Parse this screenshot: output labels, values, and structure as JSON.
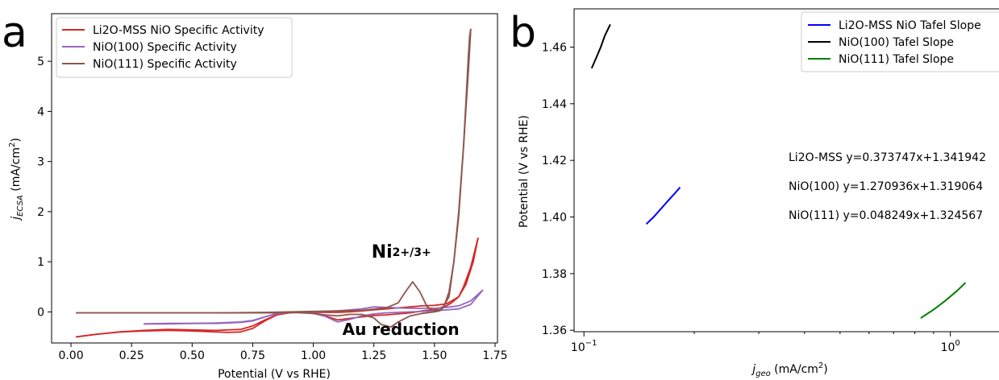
{
  "chart_data": [
    {
      "panel_label": "a",
      "type": "line",
      "title": "",
      "xlabel": "Potential (V vs RHE)",
      "ylabel_main": "j",
      "ylabel_sub": "ECSA",
      "ylabel_unit": " (mA/cm",
      "ylabel_sup": "2",
      "ylabel_close": ")",
      "xlim": [
        -0.08,
        1.76
      ],
      "ylim": [
        -0.62,
        5.95
      ],
      "xticks": [
        0.0,
        0.25,
        0.5,
        0.75,
        1.0,
        1.25,
        1.5,
        1.75
      ],
      "xtick_labels": [
        "0.00",
        "0.25",
        "0.50",
        "0.75",
        "1.00",
        "1.25",
        "1.50",
        "1.75"
      ],
      "yticks": [
        0,
        1,
        2,
        3,
        4,
        5
      ],
      "ytick_labels": [
        "0",
        "1",
        "2",
        "3",
        "4",
        "5"
      ],
      "grid": false,
      "legend_position": "top-left",
      "annotations": [
        {
          "main": "Ni",
          "sup": "2+/3+",
          "x": 1.24,
          "y": 1.08
        },
        {
          "main": "Au reduction",
          "x": 1.12,
          "y": -0.46
        }
      ],
      "series": [
        {
          "name": "Li2O-MSS NiO Specific Activity",
          "color": "#d62728",
          "scans": [
            {
              "x": [
                0.02,
                0.1,
                0.2,
                0.3,
                0.4,
                0.5,
                0.6,
                0.65,
                0.7,
                0.75,
                0.8,
                0.85,
                0.9,
                0.95,
                1.0,
                1.05,
                1.1,
                1.15,
                1.2,
                1.25,
                1.3,
                1.35,
                1.4,
                1.45,
                1.5,
                1.55,
                1.6,
                1.63,
                1.66,
                1.68
              ],
              "y": [
                -0.5,
                -0.45,
                -0.4,
                -0.38,
                -0.37,
                -0.38,
                -0.4,
                -0.41,
                -0.4,
                -0.33,
                -0.18,
                -0.06,
                -0.02,
                -0.01,
                -0.01,
                -0.01,
                -0.01,
                0.0,
                0.02,
                0.04,
                0.06,
                0.08,
                0.1,
                0.12,
                0.13,
                0.16,
                0.3,
                0.55,
                1.0,
                1.48
              ]
            },
            {
              "x": [
                1.68,
                1.65,
                1.62,
                1.6,
                1.57,
                1.55,
                1.5,
                1.45,
                1.4,
                1.35,
                1.3,
                1.25,
                1.2,
                1.15,
                1.1,
                1.05,
                1.0,
                0.95,
                0.9,
                0.85,
                0.8,
                0.75,
                0.7,
                0.6,
                0.5,
                0.4,
                0.3,
                0.2,
                0.1,
                0.02
              ],
              "y": [
                1.48,
                0.9,
                0.5,
                0.3,
                0.18,
                0.12,
                0.05,
                0.02,
                -0.02,
                -0.04,
                -0.06,
                -0.07,
                -0.1,
                -0.13,
                -0.16,
                -0.08,
                -0.03,
                -0.01,
                -0.01,
                -0.06,
                -0.16,
                -0.28,
                -0.35,
                -0.37,
                -0.36,
                -0.35,
                -0.37,
                -0.4,
                -0.45,
                -0.5
              ]
            }
          ]
        },
        {
          "name": "NiO(100) Specific Activity",
          "color": "#9467bd",
          "scans": [
            {
              "x": [
                0.3,
                0.4,
                0.5,
                0.6,
                0.7,
                0.75,
                0.8,
                0.85,
                0.9,
                0.95,
                1.0,
                1.05,
                1.1,
                1.2,
                1.25,
                1.3,
                1.4,
                1.5,
                1.55,
                1.6,
                1.65,
                1.7
              ],
              "y": [
                -0.24,
                -0.23,
                -0.23,
                -0.23,
                -0.21,
                -0.18,
                -0.1,
                -0.03,
                0.0,
                0.0,
                0.0,
                0.01,
                0.02,
                0.06,
                0.1,
                0.09,
                0.07,
                0.07,
                0.09,
                0.12,
                0.22,
                0.44
              ]
            },
            {
              "x": [
                1.7,
                1.65,
                1.6,
                1.55,
                1.5,
                1.4,
                1.3,
                1.25,
                1.2,
                1.15,
                1.1,
                1.05,
                1.0,
                0.95,
                0.9,
                0.85,
                0.8,
                0.75,
                0.7,
                0.6,
                0.5,
                0.4,
                0.3
              ],
              "y": [
                0.44,
                0.15,
                0.06,
                0.04,
                0.02,
                0.0,
                -0.02,
                -0.04,
                -0.08,
                -0.15,
                -0.2,
                -0.09,
                -0.03,
                -0.01,
                -0.01,
                -0.04,
                -0.1,
                -0.17,
                -0.2,
                -0.22,
                -0.23,
                -0.24,
                -0.24
              ]
            }
          ]
        },
        {
          "name": "NiO(111) Specific Activity",
          "color": "#8c564b",
          "scans": [
            {
              "x": [
                0.02,
                0.2,
                0.4,
                0.6,
                0.8,
                0.9,
                1.0,
                1.1,
                1.2,
                1.3,
                1.35,
                1.38,
                1.41,
                1.44,
                1.47,
                1.5,
                1.53,
                1.56,
                1.58,
                1.6,
                1.62,
                1.63,
                1.64,
                1.645,
                1.65
              ],
              "y": [
                -0.02,
                -0.02,
                -0.02,
                -0.02,
                -0.01,
                0.0,
                0.01,
                0.02,
                0.03,
                0.08,
                0.18,
                0.4,
                0.6,
                0.4,
                0.1,
                0.03,
                0.05,
                0.3,
                1.0,
                2.0,
                3.3,
                4.2,
                5.1,
                5.5,
                5.65
              ]
            },
            {
              "x": [
                1.65,
                1.64,
                1.62,
                1.6,
                1.58,
                1.56,
                1.54,
                1.52,
                1.5,
                1.45,
                1.4,
                1.35,
                1.32,
                1.28,
                1.25,
                1.2,
                1.15,
                1.1,
                1.05,
                1.0,
                0.95,
                0.9,
                0.85,
                0.8,
                0.6,
                0.4,
                0.2,
                0.02
              ],
              "y": [
                5.65,
                4.8,
                3.3,
                1.9,
                1.0,
                0.4,
                0.12,
                0.02,
                0.0,
                -0.03,
                -0.08,
                -0.2,
                -0.3,
                -0.25,
                -0.12,
                -0.05,
                -0.05,
                -0.08,
                -0.06,
                -0.03,
                -0.02,
                -0.01,
                -0.02,
                -0.02,
                -0.02,
                -0.02,
                -0.02,
                -0.02
              ]
            }
          ]
        }
      ]
    },
    {
      "panel_label": "b",
      "type": "line",
      "title": "",
      "xlabel_main": "j",
      "xlabel_sub": "geo",
      "xlabel_unit": " (mA/cm",
      "xlabel_sup": "2",
      "xlabel_close": ")",
      "ylabel": "Potential (V vs RHE)",
      "x_scale": "log",
      "xlim": [
        0.094,
        1.45
      ],
      "ylim": [
        1.3595,
        1.4735
      ],
      "xticks_major": [
        0.1,
        1.0
      ],
      "xtick_labels": [
        {
          "base": "10",
          "exp": "−1"
        },
        {
          "base": "10",
          "exp": "0"
        }
      ],
      "xticks_minor": [
        0.2,
        0.3,
        0.4,
        0.5,
        0.6,
        0.7,
        0.8,
        0.9
      ],
      "yticks": [
        1.36,
        1.38,
        1.4,
        1.42,
        1.44,
        1.46
      ],
      "ytick_labels": [
        "1.36",
        "1.38",
        "1.40",
        "1.42",
        "1.44",
        "1.46"
      ],
      "grid": false,
      "legend_position": "top-right",
      "annotations": [
        "Li2O-MSS y=0.373747x+1.341942",
        "NiO(100) y=1.270936x+1.319064",
        "NiO(111) y=0.048249x+1.324567"
      ],
      "series": [
        {
          "name": "Li2O-MSS NiO Tafel Slope",
          "color": "#0000ff",
          "x": [
            0.148,
            0.155,
            0.162,
            0.169,
            0.176,
            0.183
          ],
          "y": [
            1.3975,
            1.4,
            1.4028,
            1.4055,
            1.408,
            1.4105
          ]
        },
        {
          "name": "NiO(100) Tafel Slope",
          "color": "#000000",
          "x": [
            0.105,
            0.108,
            0.111,
            0.114,
            0.118
          ],
          "y": [
            1.4525,
            1.4562,
            1.4598,
            1.464,
            1.468
          ]
        },
        {
          "name": "NiO(111) Tafel Slope",
          "color": "#008000",
          "x": [
            0.83,
            0.9,
            0.97,
            1.04,
            1.1
          ],
          "y": [
            1.3643,
            1.3673,
            1.3705,
            1.3738,
            1.3768
          ]
        }
      ]
    }
  ]
}
